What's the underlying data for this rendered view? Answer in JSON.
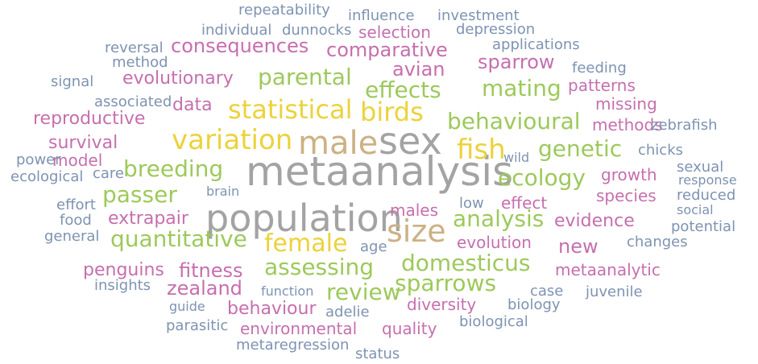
{
  "colors": {
    "gray": "#a3a3a3",
    "blue": "#7e93b2",
    "pink": "#c66fae",
    "green": "#9dc95b",
    "yellow": "#ecd23b",
    "tan": "#cdb184"
  },
  "words": [
    {
      "text": "metaanalysis",
      "color": "gray"
    },
    {
      "text": "sex",
      "color": "gray"
    },
    {
      "text": "population",
      "color": "gray"
    },
    {
      "text": "male",
      "color": "tan"
    },
    {
      "text": "size",
      "color": "tan"
    },
    {
      "text": "variation",
      "color": "yellow"
    },
    {
      "text": "statistical",
      "color": "yellow"
    },
    {
      "text": "birds",
      "color": "yellow"
    },
    {
      "text": "fish",
      "color": "yellow"
    },
    {
      "text": "female",
      "color": "yellow"
    },
    {
      "text": "parental",
      "color": "green"
    },
    {
      "text": "effects",
      "color": "green"
    },
    {
      "text": "mating",
      "color": "green"
    },
    {
      "text": "behavioural",
      "color": "green"
    },
    {
      "text": "genetic",
      "color": "green"
    },
    {
      "text": "ecology",
      "color": "green"
    },
    {
      "text": "breeding",
      "color": "green"
    },
    {
      "text": "passer",
      "color": "green"
    },
    {
      "text": "quantitative",
      "color": "green"
    },
    {
      "text": "analysis",
      "color": "green"
    },
    {
      "text": "assessing",
      "color": "green"
    },
    {
      "text": "domesticus",
      "color": "green"
    },
    {
      "text": "sparrows",
      "color": "green"
    },
    {
      "text": "review",
      "color": "green"
    },
    {
      "text": "avian",
      "color": "pink"
    },
    {
      "text": "consequences",
      "color": "pink"
    },
    {
      "text": "comparative",
      "color": "pink"
    },
    {
      "text": "selection",
      "color": "pink"
    },
    {
      "text": "sparrow",
      "color": "pink"
    },
    {
      "text": "evolutionary",
      "color": "pink"
    },
    {
      "text": "data",
      "color": "pink"
    },
    {
      "text": "reproductive",
      "color": "pink"
    },
    {
      "text": "survival",
      "color": "pink"
    },
    {
      "text": "patterns",
      "color": "pink"
    },
    {
      "text": "missing",
      "color": "pink"
    },
    {
      "text": "methods",
      "color": "pink"
    },
    {
      "text": "growth",
      "color": "pink"
    },
    {
      "text": "species",
      "color": "pink"
    },
    {
      "text": "effect",
      "color": "pink"
    },
    {
      "text": "evidence",
      "color": "pink"
    },
    {
      "text": "extrapair",
      "color": "pink"
    },
    {
      "text": "males",
      "color": "pink"
    },
    {
      "text": "new",
      "color": "pink"
    },
    {
      "text": "evolution",
      "color": "pink"
    },
    {
      "text": "fitness",
      "color": "pink"
    },
    {
      "text": "zealand",
      "color": "pink"
    },
    {
      "text": "penguins",
      "color": "pink"
    },
    {
      "text": "metaanalytic",
      "color": "pink"
    },
    {
      "text": "behaviour",
      "color": "pink"
    },
    {
      "text": "diversity",
      "color": "pink"
    },
    {
      "text": "environmental",
      "color": "pink"
    },
    {
      "text": "quality",
      "color": "pink"
    },
    {
      "text": "model",
      "color": "pink"
    },
    {
      "text": "repeatability",
      "color": "blue"
    },
    {
      "text": "influence",
      "color": "blue"
    },
    {
      "text": "investment",
      "color": "blue"
    },
    {
      "text": "individual",
      "color": "blue"
    },
    {
      "text": "dunnocks",
      "color": "blue"
    },
    {
      "text": "depression",
      "color": "blue"
    },
    {
      "text": "reversal",
      "color": "blue"
    },
    {
      "text": "method",
      "color": "blue"
    },
    {
      "text": "applications",
      "color": "blue"
    },
    {
      "text": "feeding",
      "color": "blue"
    },
    {
      "text": "signal",
      "color": "blue"
    },
    {
      "text": "associated",
      "color": "blue"
    },
    {
      "text": "zebrafish",
      "color": "blue"
    },
    {
      "text": "chicks",
      "color": "blue"
    },
    {
      "text": "power",
      "color": "blue"
    },
    {
      "text": "ecological",
      "color": "blue"
    },
    {
      "text": "care",
      "color": "blue"
    },
    {
      "text": "wild",
      "color": "blue"
    },
    {
      "text": "sexual",
      "color": "blue"
    },
    {
      "text": "response",
      "color": "blue"
    },
    {
      "text": "brain",
      "color": "blue"
    },
    {
      "text": "reduced",
      "color": "blue"
    },
    {
      "text": "effort",
      "color": "blue"
    },
    {
      "text": "low",
      "color": "blue"
    },
    {
      "text": "social",
      "color": "blue"
    },
    {
      "text": "food",
      "color": "blue"
    },
    {
      "text": "potential",
      "color": "blue"
    },
    {
      "text": "general",
      "color": "blue"
    },
    {
      "text": "age",
      "color": "blue"
    },
    {
      "text": "changes",
      "color": "blue"
    },
    {
      "text": "insights",
      "color": "blue"
    },
    {
      "text": "function",
      "color": "blue"
    },
    {
      "text": "case",
      "color": "blue"
    },
    {
      "text": "juvenile",
      "color": "blue"
    },
    {
      "text": "guide",
      "color": "blue"
    },
    {
      "text": "adelie",
      "color": "blue"
    },
    {
      "text": "biology",
      "color": "blue"
    },
    {
      "text": "parasitic",
      "color": "blue"
    },
    {
      "text": "biological",
      "color": "blue"
    },
    {
      "text": "metaregression",
      "color": "blue"
    },
    {
      "text": "status",
      "color": "blue"
    }
  ]
}
